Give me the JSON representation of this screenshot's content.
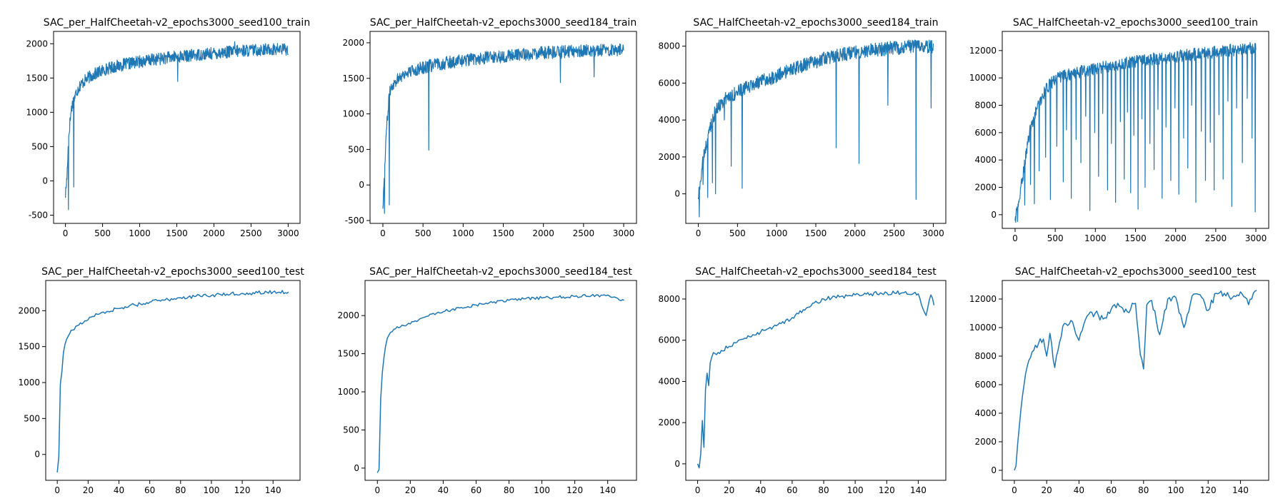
{
  "colors": {
    "line": "#1f77b4",
    "axes": "#000000",
    "background": "#ffffff"
  },
  "chart_data": [
    {
      "type": "line",
      "name": "train-seed100-per",
      "title": "SAC_per_HalfCheetah-v2_epochs3000_seed100_train",
      "xlabel": "",
      "ylabel": "",
      "xlim": [
        -160,
        3160
      ],
      "ylim": [
        -620,
        2180
      ],
      "xticks": [
        0,
        500,
        1000,
        1500,
        2000,
        2500,
        3000
      ],
      "yticks": [
        -500,
        0,
        500,
        1000,
        1500,
        2000
      ],
      "x": [
        0,
        20,
        40,
        60,
        80,
        100,
        150,
        200,
        300,
        400,
        500,
        600,
        800,
        1000,
        1200,
        1400,
        1600,
        1800,
        2000,
        2200,
        2400,
        2600,
        2800,
        3000
      ],
      "values": [
        -200,
        50,
        600,
        850,
        1050,
        1150,
        1300,
        1400,
        1500,
        1560,
        1610,
        1650,
        1700,
        1740,
        1770,
        1800,
        1820,
        1840,
        1860,
        1880,
        1900,
        1910,
        1920,
        1920
      ],
      "noise": 90,
      "spikes": [
        [
          40,
          -420
        ],
        [
          110,
          -90
        ],
        [
          1510,
          1450
        ],
        [
          2280,
          2030
        ]
      ]
    },
    {
      "type": "line",
      "name": "train-seed184-per",
      "title": "SAC_per_HalfCheetah-v2_epochs3000_seed184_train",
      "xlabel": "",
      "ylabel": "",
      "xlim": [
        -160,
        3160
      ],
      "ylim": [
        -540,
        2160
      ],
      "xticks": [
        0,
        500,
        1000,
        1500,
        2000,
        2500,
        3000
      ],
      "yticks": [
        -500,
        0,
        500,
        1000,
        1500,
        2000
      ],
      "x": [
        0,
        20,
        40,
        60,
        80,
        100,
        150,
        200,
        300,
        400,
        600,
        800,
        1000,
        1200,
        1400,
        1600,
        1800,
        2000,
        2200,
        2400,
        2600,
        2800,
        3000
      ],
      "values": [
        -300,
        200,
        700,
        1000,
        1250,
        1380,
        1450,
        1520,
        1580,
        1620,
        1680,
        1720,
        1750,
        1780,
        1800,
        1820,
        1840,
        1860,
        1870,
        1880,
        1890,
        1900,
        1900
      ],
      "noise": 90,
      "spikes": [
        [
          20,
          -400
        ],
        [
          80,
          -280
        ],
        [
          570,
          490
        ],
        [
          2210,
          1440
        ],
        [
          2630,
          1520
        ]
      ]
    },
    {
      "type": "line",
      "name": "train-seed184",
      "title": "SAC_HalfCheetah-v2_epochs3000_seed184_train",
      "xlabel": "",
      "ylabel": "",
      "xlim": [
        -160,
        3160
      ],
      "ylim": [
        -1600,
        8800
      ],
      "xticks": [
        0,
        500,
        1000,
        1500,
        2000,
        2500,
        3000
      ],
      "yticks": [
        0,
        2000,
        4000,
        6000,
        8000
      ],
      "x": [
        0,
        30,
        60,
        100,
        150,
        200,
        300,
        400,
        500,
        700,
        1000,
        1300,
        1600,
        1900,
        2200,
        2500,
        2800,
        3000
      ],
      "values": [
        -200,
        800,
        1800,
        2600,
        3600,
        4300,
        5000,
        5300,
        5500,
        5900,
        6400,
        6900,
        7300,
        7600,
        7800,
        7900,
        8000,
        8000
      ],
      "noise": 380,
      "spikes": [
        [
          10,
          -1250
        ],
        [
          60,
          500
        ],
        [
          120,
          -200
        ],
        [
          180,
          600
        ],
        [
          220,
          0
        ],
        [
          330,
          4000
        ],
        [
          420,
          1500
        ],
        [
          560,
          300
        ],
        [
          1760,
          2500
        ],
        [
          2050,
          1650
        ],
        [
          2420,
          4800
        ],
        [
          2780,
          -300
        ],
        [
          2970,
          4650
        ]
      ]
    },
    {
      "type": "line",
      "name": "train-seed100",
      "title": "SAC_HalfCheetah-v2_epochs3000_seed100_train",
      "xlabel": "",
      "ylabel": "",
      "xlim": [
        -160,
        3160
      ],
      "ylim": [
        -1000,
        13400
      ],
      "xticks": [
        0,
        500,
        1000,
        1500,
        2000,
        2500,
        3000
      ],
      "yticks": [
        0,
        2000,
        4000,
        6000,
        8000,
        10000,
        12000
      ],
      "x": [
        0,
        50,
        100,
        150,
        200,
        300,
        400,
        500,
        700,
        1000,
        1300,
        1600,
        1900,
        2200,
        2500,
        2800,
        3000
      ],
      "values": [
        -400,
        1000,
        3000,
        5000,
        6500,
        8200,
        9300,
        9900,
        10300,
        10700,
        11000,
        11300,
        11500,
        11700,
        11900,
        12100,
        12200
      ],
      "noise": 450,
      "spikes": [
        [
          30,
          -500
        ],
        [
          120,
          700
        ],
        [
          190,
          2200
        ],
        [
          240,
          800
        ],
        [
          300,
          3200
        ],
        [
          380,
          4200
        ],
        [
          440,
          1100
        ],
        [
          520,
          5000
        ],
        [
          600,
          2400
        ],
        [
          640,
          6200
        ],
        [
          700,
          1200
        ],
        [
          760,
          5500
        ],
        [
          820,
          3800
        ],
        [
          880,
          7200
        ],
        [
          930,
          300
        ],
        [
          990,
          6000
        ],
        [
          1040,
          2800
        ],
        [
          1090,
          7400
        ],
        [
          1150,
          1800
        ],
        [
          1200,
          5200
        ],
        [
          1250,
          900
        ],
        [
          1310,
          6800
        ],
        [
          1360,
          2600
        ],
        [
          1400,
          7500
        ],
        [
          1440,
          1600
        ],
        [
          1480,
          5800
        ],
        [
          1530,
          400
        ],
        [
          1580,
          7000
        ],
        [
          1620,
          2000
        ],
        [
          1680,
          5200
        ],
        [
          1730,
          3300
        ],
        [
          1780,
          7700
        ],
        [
          1830,
          1200
        ],
        [
          1880,
          6400
        ],
        [
          1940,
          2500
        ],
        [
          1990,
          7800
        ],
        [
          2040,
          1500
        ],
        [
          2100,
          5600
        ],
        [
          2150,
          3400
        ],
        [
          2200,
          8000
        ],
        [
          2250,
          900
        ],
        [
          2320,
          6100
        ],
        [
          2370,
          2500
        ],
        [
          2430,
          5300
        ],
        [
          2480,
          1800
        ],
        [
          2540,
          7300
        ],
        [
          2590,
          2600
        ],
        [
          2650,
          8300
        ],
        [
          2700,
          600
        ],
        [
          2760,
          7800
        ],
        [
          2830,
          3800
        ],
        [
          2890,
          8500
        ],
        [
          2950,
          5600
        ],
        [
          2990,
          200
        ]
      ]
    },
    {
      "type": "line",
      "name": "test-seed100-per",
      "title": "SAC_per_HalfCheetah-v2_epochs3000_seed100_test",
      "xlabel": "",
      "ylabel": "",
      "xlim": [
        -7.5,
        157.5
      ],
      "ylim": [
        -360,
        2420
      ],
      "xticks": [
        0,
        20,
        40,
        60,
        80,
        100,
        120,
        140
      ],
      "yticks": [
        0,
        500,
        1000,
        1500,
        2000
      ],
      "x": [
        0,
        1,
        2,
        3,
        4,
        5,
        6,
        8,
        10,
        14,
        18,
        22,
        26,
        30,
        40,
        50,
        60,
        70,
        80,
        90,
        100,
        110,
        120,
        130,
        140,
        150
      ],
      "values": [
        -250,
        -30,
        980,
        1150,
        1420,
        1530,
        1600,
        1680,
        1730,
        1800,
        1860,
        1910,
        1950,
        1980,
        2030,
        2080,
        2120,
        2150,
        2180,
        2200,
        2210,
        2230,
        2240,
        2250,
        2260,
        2260
      ],
      "noise": 50,
      "spikes": []
    },
    {
      "type": "line",
      "name": "test-seed184-per",
      "title": "SAC_per_HalfCheetah-v2_epochs3000_seed184_test",
      "xlabel": "",
      "ylabel": "",
      "xlim": [
        -7.5,
        157.5
      ],
      "ylim": [
        -160,
        2460
      ],
      "xticks": [
        0,
        20,
        40,
        60,
        80,
        100,
        120,
        140
      ],
      "yticks": [
        0,
        500,
        1000,
        1500,
        2000
      ],
      "x": [
        0,
        1,
        2,
        3,
        4,
        5,
        6,
        8,
        10,
        14,
        18,
        22,
        26,
        30,
        40,
        50,
        60,
        70,
        80,
        90,
        100,
        110,
        120,
        130,
        140,
        150
      ],
      "values": [
        -60,
        -20,
        900,
        1250,
        1450,
        1600,
        1700,
        1780,
        1820,
        1850,
        1880,
        1920,
        1960,
        1990,
        2050,
        2100,
        2140,
        2170,
        2200,
        2220,
        2230,
        2240,
        2250,
        2260,
        2270,
        2200
      ],
      "noise": 40,
      "spikes": []
    },
    {
      "type": "line",
      "name": "test-seed184",
      "title": "SAC_HalfCheetah-v2_epochs3000_seed184_test",
      "xlabel": "",
      "ylabel": "",
      "xlim": [
        -7.5,
        157.5
      ],
      "ylim": [
        -800,
        8900
      ],
      "xticks": [
        0,
        20,
        40,
        60,
        80,
        100,
        120,
        140
      ],
      "yticks": [
        0,
        2000,
        4000,
        6000,
        8000
      ],
      "x": [
        0,
        1,
        2,
        3,
        4,
        5,
        6,
        7,
        8,
        10,
        12,
        15,
        20,
        25,
        30,
        40,
        50,
        60,
        70,
        80,
        90,
        100,
        110,
        120,
        130,
        140,
        145,
        148,
        150
      ],
      "values": [
        0,
        -200,
        500,
        2100,
        800,
        3600,
        4400,
        3800,
        4900,
        5400,
        5300,
        5500,
        5700,
        5900,
        6100,
        6400,
        6700,
        7100,
        7600,
        8000,
        8100,
        8200,
        8250,
        8300,
        8300,
        8250,
        7200,
        8200,
        7700
      ],
      "noise": 200,
      "spikes": []
    },
    {
      "type": "line",
      "name": "test-seed100",
      "title": "SAC_HalfCheetah-v2_epochs3000_seed100_test",
      "xlabel": "",
      "ylabel": "",
      "xlim": [
        -7.5,
        157.5
      ],
      "ylim": [
        -700,
        13300
      ],
      "xticks": [
        0,
        20,
        40,
        60,
        80,
        100,
        120,
        140
      ],
      "yticks": [
        0,
        2000,
        4000,
        6000,
        8000,
        10000,
        12000
      ],
      "x": [
        0,
        1,
        2,
        3,
        4,
        5,
        6,
        7,
        8,
        10,
        12,
        15,
        18,
        20,
        22,
        25,
        30,
        35,
        40,
        45,
        50,
        55,
        60,
        65,
        70,
        75,
        78,
        80,
        82,
        85,
        90,
        95,
        100,
        105,
        110,
        115,
        120,
        125,
        130,
        135,
        140,
        145,
        150
      ],
      "values": [
        0,
        300,
        1800,
        3000,
        4200,
        5200,
        6000,
        6800,
        7300,
        7900,
        8400,
        8900,
        9200,
        8000,
        9600,
        7200,
        10100,
        10500,
        9100,
        10800,
        11000,
        10600,
        11300,
        11500,
        11100,
        11700,
        8100,
        7100,
        11600,
        11900,
        9500,
        12000,
        12100,
        10000,
        12200,
        12300,
        11200,
        12400,
        12400,
        12100,
        12500,
        11600,
        12600
      ],
      "noise": 500,
      "spikes": []
    }
  ]
}
